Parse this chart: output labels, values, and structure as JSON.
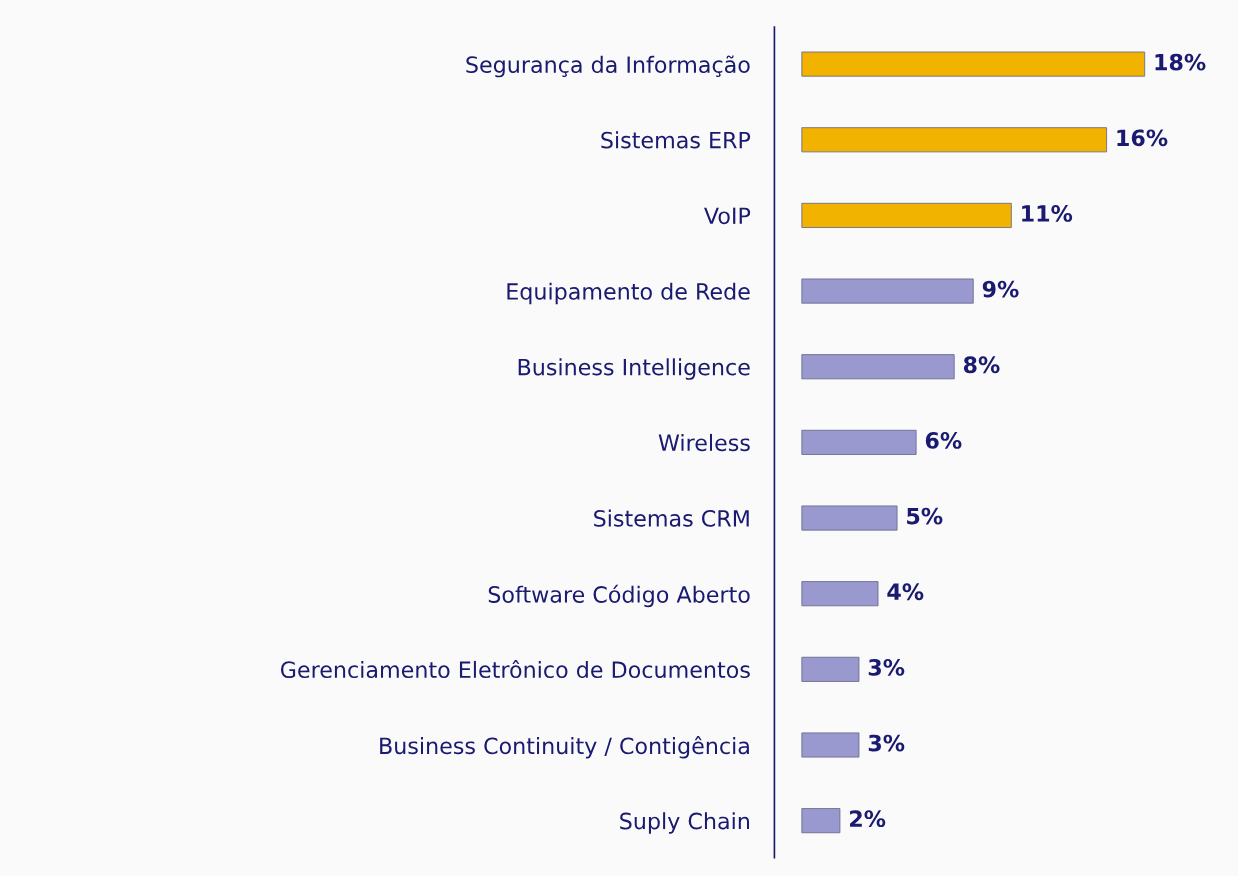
{
  "chart_data": {
    "type": "bar",
    "orientation": "horizontal",
    "categories": [
      "Segurança da Informação",
      "Sistemas ERP",
      "VoIP",
      "Equipamento de Rede",
      "Business Intelligence",
      "Wireless",
      "Sistemas CRM",
      "Software Código Aberto",
      "Gerenciamento Eletrônico de Documentos",
      "Business Continuity / Contigência",
      "Suply Chain"
    ],
    "values": [
      18,
      16,
      11,
      9,
      8,
      6,
      5,
      4,
      3,
      3,
      2
    ],
    "value_labels": [
      "18%",
      "16%",
      "11%",
      "9%",
      "8%",
      "6%",
      "5%",
      "4%",
      "3%",
      "3%",
      "2%"
    ],
    "colors": [
      "#f2b200",
      "#f2b200",
      "#f2b200",
      "#9999d0",
      "#9999d0",
      "#9999d0",
      "#9999d0",
      "#9999d0",
      "#9999d0",
      "#9999d0",
      "#9999d0"
    ],
    "tick_labels": "y",
    "grid": false,
    "legend": false
  }
}
